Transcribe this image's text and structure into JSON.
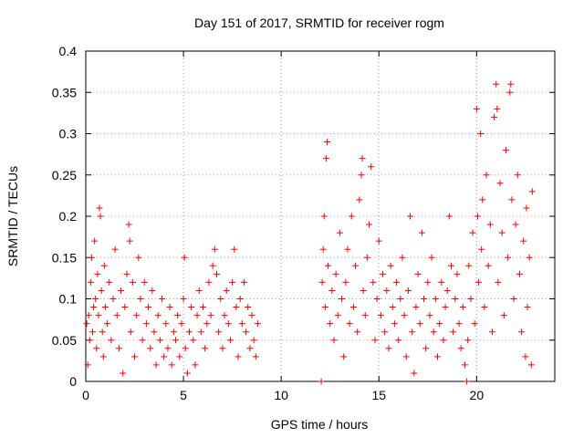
{
  "chart_data": {
    "type": "scatter",
    "title": "Day 151 of 2017, SRMTID for receiver rogm",
    "xlabel": "GPS time / hours",
    "ylabel": "SRMTID / TECUs",
    "xlim": [
      0,
      24
    ],
    "ylim": [
      0,
      0.4
    ],
    "x_ticks": [
      0,
      5,
      10,
      15,
      20
    ],
    "x_tick_labels": [
      "0",
      "5",
      "10",
      "15",
      "20"
    ],
    "y_ticks": [
      0,
      0.05,
      0.1,
      0.15,
      0.2,
      0.25,
      0.3,
      0.35,
      0.4
    ],
    "y_tick_labels": [
      "0",
      "0.05",
      "0.1",
      "0.15",
      "0.2",
      "0.25",
      "0.3",
      "0.35",
      "0.4"
    ],
    "grid": true,
    "marker": "+",
    "series_color": "#ff0000",
    "series": [
      {
        "name": "SRMTID",
        "points": [
          [
            0.05,
            0.07
          ],
          [
            0.1,
            0.02
          ],
          [
            0.15,
            0.08
          ],
          [
            0.2,
            0.05
          ],
          [
            0.25,
            0.12
          ],
          [
            0.3,
            0.15
          ],
          [
            0.35,
            0.06
          ],
          [
            0.4,
            0.09
          ],
          [
            0.45,
            0.17
          ],
          [
            0.5,
            0.1
          ],
          [
            0.55,
            0.04
          ],
          [
            0.6,
            0.13
          ],
          [
            0.65,
            0.08
          ],
          [
            0.7,
            0.21
          ],
          [
            0.75,
            0.2
          ],
          [
            0.8,
            0.11
          ],
          [
            0.85,
            0.06
          ],
          [
            0.9,
            0.03
          ],
          [
            0.95,
            0.14
          ],
          [
            1.0,
            0.09
          ],
          [
            1.1,
            0.07
          ],
          [
            1.2,
            0.12
          ],
          [
            1.3,
            0.05
          ],
          [
            1.4,
            0.1
          ],
          [
            1.5,
            0.16
          ],
          [
            1.6,
            0.08
          ],
          [
            1.7,
            0.04
          ],
          [
            1.8,
            0.11
          ],
          [
            1.9,
            0.01
          ],
          [
            2.0,
            0.09
          ],
          [
            2.1,
            0.13
          ],
          [
            2.2,
            0.19
          ],
          [
            2.25,
            0.17
          ],
          [
            2.3,
            0.06
          ],
          [
            2.4,
            0.12
          ],
          [
            2.5,
            0.03
          ],
          [
            2.6,
            0.08
          ],
          [
            2.7,
            0.15
          ],
          [
            2.8,
            0.1
          ],
          [
            2.9,
            0.05
          ],
          [
            3.0,
            0.12
          ],
          [
            3.1,
            0.07
          ],
          [
            3.2,
            0.09
          ],
          [
            3.3,
            0.04
          ],
          [
            3.4,
            0.11
          ],
          [
            3.5,
            0.06
          ],
          [
            3.6,
            0.02
          ],
          [
            3.7,
            0.08
          ],
          [
            3.8,
            0.05
          ],
          [
            3.9,
            0.1
          ],
          [
            4.0,
            0.03
          ],
          [
            4.1,
            0.07
          ],
          [
            4.2,
            0.04
          ],
          [
            4.3,
            0.09
          ],
          [
            4.4,
            0.02
          ],
          [
            4.5,
            0.06
          ],
          [
            4.6,
            0.05
          ],
          [
            4.7,
            0.08
          ],
          [
            4.8,
            0.03
          ],
          [
            4.9,
            0.07
          ],
          [
            5.0,
            0.1
          ],
          [
            5.05,
            0.15
          ],
          [
            5.1,
            0.04
          ],
          [
            5.2,
            0.01
          ],
          [
            5.3,
            0.06
          ],
          [
            5.4,
            0.09
          ],
          [
            5.5,
            0.05
          ],
          [
            5.6,
            0.02
          ],
          [
            5.7,
            0.08
          ],
          [
            5.8,
            0.11
          ],
          [
            5.9,
            0.06
          ],
          [
            6.0,
            0.09
          ],
          [
            6.1,
            0.04
          ],
          [
            6.2,
            0.07
          ],
          [
            6.3,
            0.12
          ],
          [
            6.4,
            0.08
          ],
          [
            6.5,
            0.14
          ],
          [
            6.6,
            0.16
          ],
          [
            6.7,
            0.13
          ],
          [
            6.8,
            0.06
          ],
          [
            6.9,
            0.1
          ],
          [
            7.0,
            0.04
          ],
          [
            7.1,
            0.08
          ],
          [
            7.2,
            0.11
          ],
          [
            7.3,
            0.07
          ],
          [
            7.4,
            0.05
          ],
          [
            7.5,
            0.12
          ],
          [
            7.6,
            0.16
          ],
          [
            7.7,
            0.09
          ],
          [
            7.8,
            0.03
          ],
          [
            7.9,
            0.1
          ],
          [
            8.0,
            0.07
          ],
          [
            8.1,
            0.12
          ],
          [
            8.2,
            0.06
          ],
          [
            8.3,
            0.09
          ],
          [
            8.4,
            0.04
          ],
          [
            8.5,
            0.08
          ],
          [
            8.6,
            0.05
          ],
          [
            8.7,
            0.03
          ],
          [
            8.8,
            0.07
          ],
          [
            12.05,
            0.0
          ],
          [
            12.1,
            0.12
          ],
          [
            12.15,
            0.16
          ],
          [
            12.2,
            0.2
          ],
          [
            12.25,
            0.09
          ],
          [
            12.3,
            0.27
          ],
          [
            12.35,
            0.29
          ],
          [
            12.4,
            0.14
          ],
          [
            12.5,
            0.07
          ],
          [
            12.6,
            0.11
          ],
          [
            12.7,
            0.05
          ],
          [
            12.8,
            0.13
          ],
          [
            12.9,
            0.08
          ],
          [
            13.0,
            0.18
          ],
          [
            13.1,
            0.1
          ],
          [
            13.2,
            0.03
          ],
          [
            13.3,
            0.12
          ],
          [
            13.4,
            0.16
          ],
          [
            13.5,
            0.07
          ],
          [
            13.6,
            0.2
          ],
          [
            13.7,
            0.09
          ],
          [
            13.8,
            0.14
          ],
          [
            13.9,
            0.06
          ],
          [
            14.0,
            0.22
          ],
          [
            14.1,
            0.25
          ],
          [
            14.15,
            0.27
          ],
          [
            14.2,
            0.11
          ],
          [
            14.3,
            0.08
          ],
          [
            14.4,
            0.15
          ],
          [
            14.5,
            0.19
          ],
          [
            14.6,
            0.26
          ],
          [
            14.7,
            0.12
          ],
          [
            14.8,
            0.05
          ],
          [
            14.9,
            0.1
          ],
          [
            15.0,
            0.17
          ],
          [
            15.1,
            0.08
          ],
          [
            15.2,
            0.13
          ],
          [
            15.3,
            0.06
          ],
          [
            15.4,
            0.11
          ],
          [
            15.5,
            0.04
          ],
          [
            15.6,
            0.14
          ],
          [
            15.7,
            0.09
          ],
          [
            15.8,
            0.07
          ],
          [
            15.9,
            0.12
          ],
          [
            16.0,
            0.05
          ],
          [
            16.1,
            0.1
          ],
          [
            16.2,
            0.15
          ],
          [
            16.3,
            0.08
          ],
          [
            16.4,
            0.03
          ],
          [
            16.5,
            0.11
          ],
          [
            16.6,
            0.2
          ],
          [
            16.7,
            0.06
          ],
          [
            16.8,
            0.01
          ],
          [
            16.9,
            0.09
          ],
          [
            17.0,
            0.13
          ],
          [
            17.1,
            0.07
          ],
          [
            17.2,
            0.18
          ],
          [
            17.3,
            0.1
          ],
          [
            17.4,
            0.04
          ],
          [
            17.5,
            0.12
          ],
          [
            17.6,
            0.08
          ],
          [
            17.7,
            0.15
          ],
          [
            17.8,
            0.06
          ],
          [
            17.9,
            0.1
          ],
          [
            18.0,
            0.03
          ],
          [
            18.1,
            0.07
          ],
          [
            18.2,
            0.12
          ],
          [
            18.3,
            0.05
          ],
          [
            18.4,
            0.09
          ],
          [
            18.5,
            0.11
          ],
          [
            18.6,
            0.2
          ],
          [
            18.7,
            0.14
          ],
          [
            18.8,
            0.06
          ],
          [
            18.9,
            0.1
          ],
          [
            19.0,
            0.13
          ],
          [
            19.1,
            0.07
          ],
          [
            19.2,
            0.04
          ],
          [
            19.3,
            0.09
          ],
          [
            19.4,
            0.02
          ],
          [
            19.5,
            0.0
          ],
          [
            19.55,
            0.05
          ],
          [
            19.6,
            0.14
          ],
          [
            19.7,
            0.1
          ],
          [
            19.8,
            0.18
          ],
          [
            19.9,
            0.07
          ],
          [
            20.0,
            0.33
          ],
          [
            20.05,
            0.2
          ],
          [
            20.1,
            0.12
          ],
          [
            20.2,
            0.3
          ],
          [
            20.25,
            0.16
          ],
          [
            20.3,
            0.22
          ],
          [
            20.4,
            0.09
          ],
          [
            20.5,
            0.25
          ],
          [
            20.6,
            0.14
          ],
          [
            20.7,
            0.19
          ],
          [
            20.8,
            0.06
          ],
          [
            20.9,
            0.32
          ],
          [
            21.0,
            0.36
          ],
          [
            21.05,
            0.33
          ],
          [
            21.1,
            0.12
          ],
          [
            21.2,
            0.24
          ],
          [
            21.3,
            0.18
          ],
          [
            21.4,
            0.08
          ],
          [
            21.5,
            0.28
          ],
          [
            21.6,
            0.15
          ],
          [
            21.7,
            0.35
          ],
          [
            21.75,
            0.36
          ],
          [
            21.8,
            0.22
          ],
          [
            21.9,
            0.1
          ],
          [
            22.0,
            0.19
          ],
          [
            22.1,
            0.25
          ],
          [
            22.2,
            0.13
          ],
          [
            22.3,
            0.06
          ],
          [
            22.4,
            0.17
          ],
          [
            22.5,
            0.03
          ],
          [
            22.55,
            0.21
          ],
          [
            22.6,
            0.09
          ],
          [
            22.7,
            0.15
          ],
          [
            22.8,
            0.02
          ],
          [
            22.85,
            0.23
          ]
        ]
      }
    ]
  }
}
